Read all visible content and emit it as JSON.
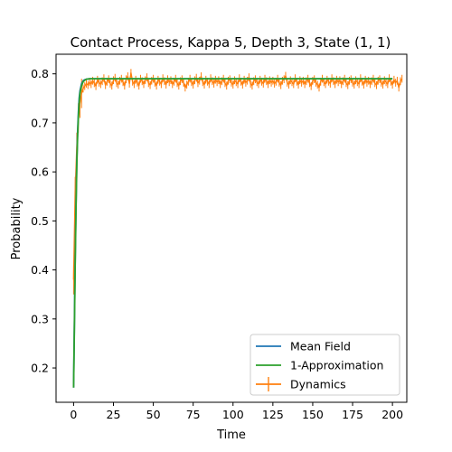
{
  "chart_data": {
    "type": "line",
    "title": "Contact Process, Kappa 5, Depth 3, State (1, 1)",
    "xlabel": "Time",
    "ylabel": "Probability",
    "xlim": [
      -11,
      209
    ],
    "ylim": [
      0.13,
      0.84
    ],
    "xticks": [
      0,
      25,
      50,
      75,
      100,
      125,
      150,
      175,
      200
    ],
    "yticks": [
      0.2,
      0.3,
      0.4,
      0.5,
      0.6,
      0.7,
      0.8
    ],
    "grid": false,
    "legend_position": "lower-right",
    "series": [
      {
        "name": "Mean Field",
        "color": "#1f77b4",
        "x": [
          0,
          0.5,
          1,
          1.5,
          2,
          2.5,
          3,
          3.5,
          4,
          5,
          6,
          7,
          8,
          10,
          15,
          20,
          50,
          100,
          150,
          200
        ],
        "y": [
          0.16,
          0.29,
          0.42,
          0.53,
          0.62,
          0.68,
          0.72,
          0.75,
          0.765,
          0.78,
          0.786,
          0.788,
          0.789,
          0.79,
          0.79,
          0.79,
          0.79,
          0.79,
          0.79,
          0.79
        ]
      },
      {
        "name": "1-Approximation",
        "color": "#2ca02c",
        "x": [
          0,
          0.5,
          1,
          1.5,
          2,
          2.5,
          3,
          3.5,
          4,
          5,
          6,
          7,
          8,
          10,
          15,
          20,
          50,
          100,
          150,
          200
        ],
        "y": [
          0.16,
          0.28,
          0.41,
          0.52,
          0.61,
          0.67,
          0.71,
          0.74,
          0.76,
          0.776,
          0.784,
          0.787,
          0.789,
          0.79,
          0.79,
          0.79,
          0.79,
          0.79,
          0.79,
          0.79
        ]
      },
      {
        "name": "Dynamics",
        "color": "#ff7f0e",
        "x_start": 0,
        "x_step": 1,
        "y": [
          0.38,
          0.56,
          0.65,
          0.71,
          0.74,
          0.76,
          0.77,
          0.775,
          0.78,
          0.777,
          0.783,
          0.779,
          0.786,
          0.781,
          0.775,
          0.788,
          0.782,
          0.779,
          0.785,
          0.791,
          0.777,
          0.784,
          0.789,
          0.78,
          0.776,
          0.787,
          0.792,
          0.781,
          0.778,
          0.786,
          0.79,
          0.783,
          0.776,
          0.789,
          0.795,
          0.78,
          0.802,
          0.784,
          0.779,
          0.788,
          0.782,
          0.776,
          0.79,
          0.785,
          0.779,
          0.787,
          0.793,
          0.781,
          0.777,
          0.786,
          0.79,
          0.782,
          0.776,
          0.788,
          0.784,
          0.779,
          0.791,
          0.785,
          0.778,
          0.789,
          0.783,
          0.787,
          0.779,
          0.784,
          0.79,
          0.781,
          0.776,
          0.785,
          0.789,
          0.782,
          0.772,
          0.778,
          0.784,
          0.79,
          0.783,
          0.778,
          0.787,
          0.792,
          0.781,
          0.786,
          0.795,
          0.783,
          0.778,
          0.788,
          0.784,
          0.779,
          0.791,
          0.785,
          0.78,
          0.788,
          0.783,
          0.787,
          0.779,
          0.785,
          0.79,
          0.781,
          0.776,
          0.786,
          0.789,
          0.782,
          0.778,
          0.787,
          0.783,
          0.779,
          0.791,
          0.784,
          0.778,
          0.788,
          0.782,
          0.786,
          0.793,
          0.78,
          0.776,
          0.785,
          0.789,
          0.783,
          0.779,
          0.788,
          0.784,
          0.78,
          0.79,
          0.785,
          0.779,
          0.787,
          0.782,
          0.786,
          0.78,
          0.784,
          0.79,
          0.782,
          0.777,
          0.786,
          0.789,
          0.796,
          0.782,
          0.778,
          0.787,
          0.783,
          0.779,
          0.791,
          0.784,
          0.778,
          0.787,
          0.782,
          0.786,
          0.779,
          0.785,
          0.79,
          0.781,
          0.775,
          0.786,
          0.789,
          0.782,
          0.778,
          0.772,
          0.784,
          0.79,
          0.783,
          0.779,
          0.788,
          0.784,
          0.78,
          0.791,
          0.785,
          0.779,
          0.788,
          0.783,
          0.787,
          0.779,
          0.785,
          0.79,
          0.781,
          0.777,
          0.786,
          0.789,
          0.782,
          0.778,
          0.787,
          0.783,
          0.779,
          0.791,
          0.784,
          0.778,
          0.788,
          0.782,
          0.786,
          0.779,
          0.785,
          0.79,
          0.781,
          0.777,
          0.786,
          0.789,
          0.782,
          0.778,
          0.787,
          0.783,
          0.779,
          0.791,
          0.784,
          0.778,
          0.788,
          0.782,
          0.786,
          0.772,
          0.785,
          0.79
        ]
      }
    ]
  }
}
